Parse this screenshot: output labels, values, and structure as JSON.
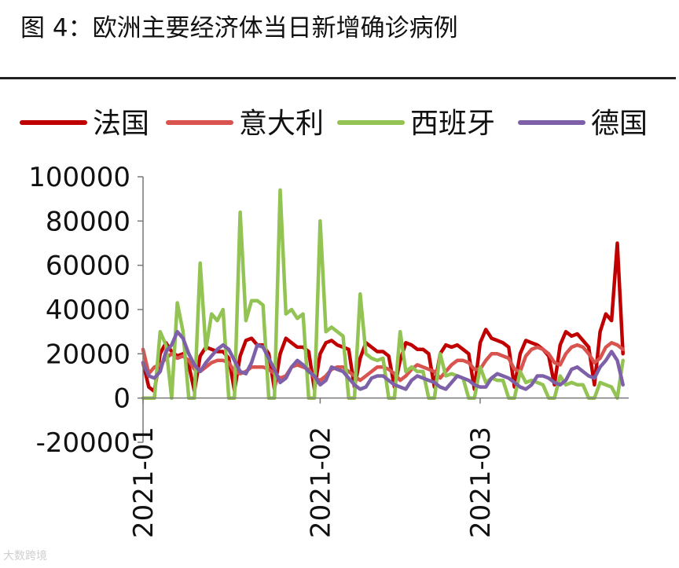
{
  "title": "图 4：欧洲主要经济体当日新增确诊病例",
  "watermark": "大数跨境",
  "chart_data": {
    "type": "line",
    "title": "",
    "xlabel": "",
    "ylabel": "",
    "ylim": [
      -20000,
      100000
    ],
    "yticks": [
      -20000,
      0,
      20000,
      40000,
      60000,
      80000,
      100000
    ],
    "ytick_labels": [
      "-20000",
      "0",
      "20000",
      "40000",
      "60000",
      "80000",
      "100000"
    ],
    "xlim": [
      "2021-01-01",
      "2021-03-27"
    ],
    "xticks": [
      "2021-01-01",
      "2021-02-01",
      "2021-03-01"
    ],
    "xtick_labels": [
      "2021-01",
      "2021-02",
      "2021-03"
    ],
    "legend_position": "top",
    "grid": false,
    "series": [
      {
        "name": "法国",
        "color": "#c00000",
        "x": [
          "2021-01-01",
          "2021-01-02",
          "2021-01-03",
          "2021-01-04",
          "2021-01-05",
          "2021-01-06",
          "2021-01-07",
          "2021-01-08",
          "2021-01-09",
          "2021-01-10",
          "2021-01-11",
          "2021-01-12",
          "2021-01-13",
          "2021-01-14",
          "2021-01-15",
          "2021-01-16",
          "2021-01-17",
          "2021-01-18",
          "2021-01-19",
          "2021-01-20",
          "2021-01-21",
          "2021-01-22",
          "2021-01-23",
          "2021-01-24",
          "2021-01-25",
          "2021-01-26",
          "2021-01-27",
          "2021-01-28",
          "2021-01-29",
          "2021-01-30",
          "2021-01-31",
          "2021-02-01",
          "2021-02-02",
          "2021-02-03",
          "2021-02-04",
          "2021-02-05",
          "2021-02-06",
          "2021-02-07",
          "2021-02-08",
          "2021-02-09",
          "2021-02-10",
          "2021-02-11",
          "2021-02-12",
          "2021-02-13",
          "2021-02-14",
          "2021-02-15",
          "2021-02-16",
          "2021-02-17",
          "2021-02-18",
          "2021-02-19",
          "2021-02-20",
          "2021-02-21",
          "2021-02-22",
          "2021-02-23",
          "2021-02-24",
          "2021-02-25",
          "2021-02-26",
          "2021-02-27",
          "2021-02-28",
          "2021-03-01",
          "2021-03-02",
          "2021-03-03",
          "2021-03-04",
          "2021-03-05",
          "2021-03-06",
          "2021-03-07",
          "2021-03-08",
          "2021-03-09",
          "2021-03-10",
          "2021-03-11",
          "2021-03-12",
          "2021-03-13",
          "2021-03-14",
          "2021-03-15",
          "2021-03-16",
          "2021-03-17",
          "2021-03-18",
          "2021-03-19",
          "2021-03-20",
          "2021-03-21",
          "2021-03-22",
          "2021-03-23",
          "2021-03-24",
          "2021-03-25",
          "2021-03-26"
        ],
        "values": [
          16000,
          5000,
          3000,
          20000,
          25000,
          21000,
          19000,
          20000,
          15000,
          3000,
          19000,
          23000,
          22000,
          21000,
          21000,
          18000,
          3500,
          19000,
          26000,
          27000,
          24000,
          24000,
          20000,
          4000,
          20000,
          27000,
          25000,
          23000,
          23000,
          21000,
          4000,
          20000,
          25000,
          26000,
          24000,
          23000,
          22000,
          5000,
          18000,
          25000,
          23000,
          21000,
          21000,
          19000,
          5000,
          17000,
          25000,
          24000,
          22000,
          22000,
          20000,
          5000,
          20000,
          24000,
          23000,
          24000,
          22000,
          20000,
          4000,
          25000,
          31000,
          27000,
          26000,
          25000,
          23000,
          5000,
          20000,
          26000,
          25000,
          24000,
          22000,
          19000,
          6000,
          24000,
          30000,
          28000,
          29000,
          26000,
          23000,
          6000,
          30000,
          38000,
          35000,
          70000,
          20000
        ]
      },
      {
        "name": "意大利",
        "color": "#d9534f",
        "x": [
          "2021-01-01",
          "2021-01-02",
          "2021-01-03",
          "2021-01-04",
          "2021-01-05",
          "2021-01-06",
          "2021-01-07",
          "2021-01-08",
          "2021-01-09",
          "2021-01-10",
          "2021-01-11",
          "2021-01-12",
          "2021-01-13",
          "2021-01-14",
          "2021-01-15",
          "2021-01-16",
          "2021-01-17",
          "2021-01-18",
          "2021-01-19",
          "2021-01-20",
          "2021-01-21",
          "2021-01-22",
          "2021-01-23",
          "2021-01-24",
          "2021-01-25",
          "2021-01-26",
          "2021-01-27",
          "2021-01-28",
          "2021-01-29",
          "2021-01-30",
          "2021-01-31",
          "2021-02-01",
          "2021-02-02",
          "2021-02-03",
          "2021-02-04",
          "2021-02-05",
          "2021-02-06",
          "2021-02-07",
          "2021-02-08",
          "2021-02-09",
          "2021-02-10",
          "2021-02-11",
          "2021-02-12",
          "2021-02-13",
          "2021-02-14",
          "2021-02-15",
          "2021-02-16",
          "2021-02-17",
          "2021-02-18",
          "2021-02-19",
          "2021-02-20",
          "2021-02-21",
          "2021-02-22",
          "2021-02-23",
          "2021-02-24",
          "2021-02-25",
          "2021-02-26",
          "2021-02-27",
          "2021-02-28",
          "2021-03-01",
          "2021-03-02",
          "2021-03-03",
          "2021-03-04",
          "2021-03-05",
          "2021-03-06",
          "2021-03-07",
          "2021-03-08",
          "2021-03-09",
          "2021-03-10",
          "2021-03-11",
          "2021-03-12",
          "2021-03-13",
          "2021-03-14",
          "2021-03-15",
          "2021-03-16",
          "2021-03-17",
          "2021-03-18",
          "2021-03-19",
          "2021-03-20",
          "2021-03-21",
          "2021-03-22",
          "2021-03-23",
          "2021-03-24",
          "2021-03-25",
          "2021-03-26"
        ],
        "values": [
          22000,
          11000,
          14000,
          15000,
          18000,
          20000,
          18000,
          19000,
          17000,
          13000,
          12000,
          14000,
          16000,
          17000,
          17000,
          16000,
          12000,
          11000,
          12000,
          14000,
          14000,
          14000,
          13000,
          11000,
          9000,
          10000,
          14000,
          15000,
          14000,
          13000,
          9000,
          8000,
          10000,
          13000,
          14000,
          14000,
          12000,
          10000,
          8000,
          10000,
          12000,
          14000,
          14000,
          13000,
          11000,
          8000,
          10000,
          13000,
          15000,
          14000,
          13000,
          12000,
          9000,
          12000,
          15000,
          17000,
          17000,
          16000,
          13000,
          13000,
          17000,
          20000,
          20000,
          19000,
          18000,
          13000,
          12000,
          19000,
          22000,
          23000,
          22000,
          20000,
          16000,
          15000,
          20000,
          23000,
          24000,
          23000,
          20000,
          16000,
          18000,
          23000,
          25000,
          24000,
          22000
        ]
      },
      {
        "name": "西班牙",
        "color": "#92c353",
        "x": [
          "2021-01-01",
          "2021-01-02",
          "2021-01-03",
          "2021-01-04",
          "2021-01-05",
          "2021-01-06",
          "2021-01-07",
          "2021-01-08",
          "2021-01-09",
          "2021-01-10",
          "2021-01-11",
          "2021-01-12",
          "2021-01-13",
          "2021-01-14",
          "2021-01-15",
          "2021-01-16",
          "2021-01-17",
          "2021-01-18",
          "2021-01-19",
          "2021-01-20",
          "2021-01-21",
          "2021-01-22",
          "2021-01-23",
          "2021-01-24",
          "2021-01-25",
          "2021-01-26",
          "2021-01-27",
          "2021-01-28",
          "2021-01-29",
          "2021-01-30",
          "2021-01-31",
          "2021-02-01",
          "2021-02-02",
          "2021-02-03",
          "2021-02-04",
          "2021-02-05",
          "2021-02-06",
          "2021-02-07",
          "2021-02-08",
          "2021-02-09",
          "2021-02-10",
          "2021-02-11",
          "2021-02-12",
          "2021-02-13",
          "2021-02-14",
          "2021-02-15",
          "2021-02-16",
          "2021-02-17",
          "2021-02-18",
          "2021-02-19",
          "2021-02-20",
          "2021-02-21",
          "2021-02-22",
          "2021-02-23",
          "2021-02-24",
          "2021-02-25",
          "2021-02-26",
          "2021-02-27",
          "2021-02-28",
          "2021-03-01",
          "2021-03-02",
          "2021-03-03",
          "2021-03-04",
          "2021-03-05",
          "2021-03-06",
          "2021-03-07",
          "2021-03-08",
          "2021-03-09",
          "2021-03-10",
          "2021-03-11",
          "2021-03-12",
          "2021-03-13",
          "2021-03-14",
          "2021-03-15",
          "2021-03-16",
          "2021-03-17",
          "2021-03-18",
          "2021-03-19",
          "2021-03-20",
          "2021-03-21",
          "2021-03-22",
          "2021-03-23",
          "2021-03-24",
          "2021-03-25",
          "2021-03-26"
        ],
        "values": [
          0,
          0,
          0,
          30000,
          24000,
          0,
          43000,
          30000,
          0,
          0,
          61000,
          22000,
          38000,
          35000,
          40000,
          0,
          0,
          84000,
          35000,
          44000,
          44000,
          42000,
          0,
          0,
          94000,
          38000,
          40000,
          36000,
          38000,
          0,
          0,
          80000,
          30000,
          32000,
          30000,
          28000,
          0,
          0,
          47000,
          20000,
          18000,
          17000,
          18000,
          0,
          0,
          30000,
          12000,
          14000,
          12000,
          12000,
          0,
          0,
          20000,
          10000,
          11000,
          10000,
          9000,
          0,
          0,
          14000,
          7000,
          9000,
          8000,
          8000,
          0,
          0,
          12000,
          7000,
          8000,
          7000,
          6000,
          0,
          0,
          10000,
          6000,
          7000,
          6000,
          6000,
          0,
          0,
          7000,
          6000,
          5000,
          0,
          17000
        ]
      },
      {
        "name": "德国",
        "color": "#7e60a8",
        "x": [
          "2021-01-01",
          "2021-01-02",
          "2021-01-03",
          "2021-01-04",
          "2021-01-05",
          "2021-01-06",
          "2021-01-07",
          "2021-01-08",
          "2021-01-09",
          "2021-01-10",
          "2021-01-11",
          "2021-01-12",
          "2021-01-13",
          "2021-01-14",
          "2021-01-15",
          "2021-01-16",
          "2021-01-17",
          "2021-01-18",
          "2021-01-19",
          "2021-01-20",
          "2021-01-21",
          "2021-01-22",
          "2021-01-23",
          "2021-01-24",
          "2021-01-25",
          "2021-01-26",
          "2021-01-27",
          "2021-01-28",
          "2021-01-29",
          "2021-01-30",
          "2021-01-31",
          "2021-02-01",
          "2021-02-02",
          "2021-02-03",
          "2021-02-04",
          "2021-02-05",
          "2021-02-06",
          "2021-02-07",
          "2021-02-08",
          "2021-02-09",
          "2021-02-10",
          "2021-02-11",
          "2021-02-12",
          "2021-02-13",
          "2021-02-14",
          "2021-02-15",
          "2021-02-16",
          "2021-02-17",
          "2021-02-18",
          "2021-02-19",
          "2021-02-20",
          "2021-02-21",
          "2021-02-22",
          "2021-02-23",
          "2021-02-24",
          "2021-02-25",
          "2021-02-26",
          "2021-02-27",
          "2021-02-28",
          "2021-03-01",
          "2021-03-02",
          "2021-03-03",
          "2021-03-04",
          "2021-03-05",
          "2021-03-06",
          "2021-03-07",
          "2021-03-08",
          "2021-03-09",
          "2021-03-10",
          "2021-03-11",
          "2021-03-12",
          "2021-03-13",
          "2021-03-14",
          "2021-03-15",
          "2021-03-16",
          "2021-03-17",
          "2021-03-18",
          "2021-03-19",
          "2021-03-20",
          "2021-03-21",
          "2021-03-22",
          "2021-03-23",
          "2021-03-24",
          "2021-03-25",
          "2021-03-26"
        ],
        "values": [
          16000,
          10000,
          9000,
          12000,
          21000,
          24000,
          30000,
          27000,
          20000,
          15000,
          12000,
          16000,
          19000,
          22000,
          24000,
          22000,
          17000,
          12000,
          11000,
          16000,
          24000,
          23000,
          18000,
          13000,
          7000,
          9000,
          14000,
          17000,
          15000,
          12000,
          10000,
          6000,
          8000,
          14000,
          13000,
          12000,
          9000,
          6000,
          4000,
          5000,
          9000,
          10000,
          10000,
          8000,
          6000,
          5000,
          4000,
          8000,
          10000,
          9000,
          8000,
          7000,
          5000,
          4000,
          7000,
          10000,
          9000,
          8000,
          6000,
          5000,
          5000,
          9000,
          11000,
          10000,
          9000,
          7000,
          5000,
          4000,
          6000,
          10000,
          10000,
          9000,
          7000,
          6000,
          8000,
          13000,
          14000,
          12000,
          10000,
          9000,
          14000,
          17000,
          21000,
          17000,
          6000
        ]
      }
    ]
  }
}
